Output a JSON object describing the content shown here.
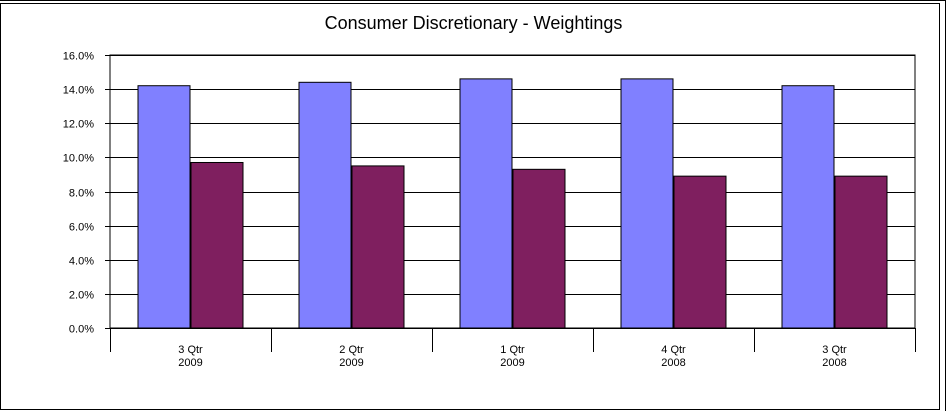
{
  "chart_data": {
    "type": "bar",
    "title": "Consumer Discretionary  -  Weightings",
    "categories": [
      [
        "3 Qtr",
        "2009"
      ],
      [
        "2 Qtr",
        "2009"
      ],
      [
        "1 Qtr",
        "2009"
      ],
      [
        "4 Qtr",
        "2008"
      ],
      [
        "3 Qtr",
        "2008"
      ]
    ],
    "series": [
      {
        "values": [
          14.2,
          14.4,
          14.6,
          14.6,
          14.2
        ],
        "color": "#8080ff"
      },
      {
        "values": [
          9.7,
          9.5,
          9.3,
          8.9,
          8.9
        ],
        "color": "#7f1f5f"
      }
    ],
    "ylim": [
      0,
      16
    ],
    "yticks": [
      "0.0%",
      "2.0%",
      "4.0%",
      "6.0%",
      "8.0%",
      "10.0%",
      "12.0%",
      "14.0%",
      "16.0%"
    ],
    "grid": true,
    "legend": "none"
  }
}
